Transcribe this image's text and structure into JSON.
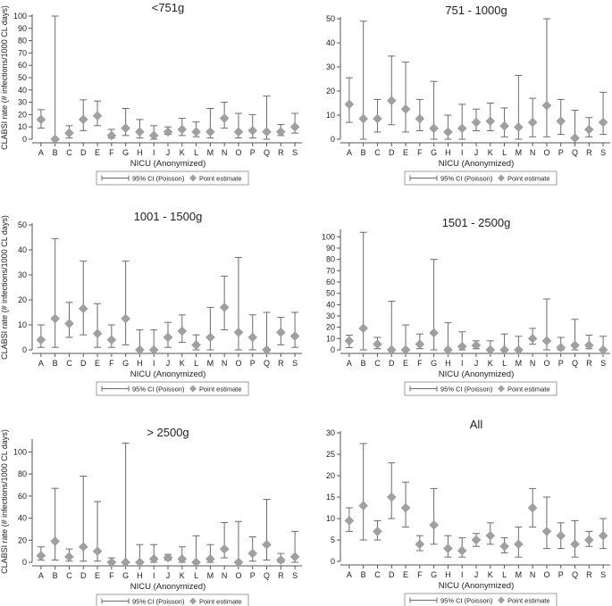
{
  "colors": {
    "axis": "#555555",
    "errorbar": "#6b6b6b",
    "marker": "#a0a0a0",
    "text": "#222222"
  },
  "chart_data": [
    {
      "type": "scatter",
      "title": "<751g",
      "xlabel": "NICU (Anonymized)",
      "ylabel": "CLABSI rate (# infections/1000 CL days)",
      "ylim": [
        0,
        100
      ],
      "yticks": [
        0,
        10,
        20,
        30,
        40,
        50,
        60,
        70,
        80,
        90,
        100
      ],
      "legend": {
        "errorbar": "95% CI (Poisson)",
        "point": "Point estimate",
        "placement": "bottom-center"
      },
      "categories": [
        "A",
        "B",
        "C",
        "D",
        "E",
        "F",
        "G",
        "H",
        "I",
        "J",
        "K",
        "L",
        "M",
        "N",
        "O",
        "P",
        "Q",
        "R",
        "S"
      ],
      "values": [
        16,
        0,
        5,
        16,
        19,
        3,
        9,
        6,
        3,
        6,
        8,
        6,
        6,
        17,
        6,
        7,
        6,
        6,
        10
      ],
      "ci_low": [
        9,
        0,
        1,
        7,
        11,
        1,
        3,
        1,
        0,
        4,
        3,
        2,
        1,
        9,
        1,
        1,
        0,
        3,
        5
      ],
      "ci_high": [
        24,
        100,
        11,
        32,
        31,
        8,
        25,
        16,
        11,
        10,
        17,
        14,
        25,
        30,
        21,
        20,
        35,
        12,
        21
      ]
    },
    {
      "type": "scatter",
      "title": "751 - 1000g",
      "xlabel": "NICU (Anonymized)",
      "ylabel": "",
      "ylim": [
        0,
        50
      ],
      "yticks": [
        0,
        10,
        20,
        30,
        40,
        50
      ],
      "legend": {
        "errorbar": "95% CI (Poisson)",
        "point": "Point estimate",
        "placement": "bottom-center"
      },
      "categories": [
        "A",
        "B",
        "C",
        "D",
        "E",
        "F",
        "G",
        "H",
        "I",
        "J",
        "K",
        "L",
        "M",
        "N",
        "O",
        "P",
        "Q",
        "R",
        "S"
      ],
      "values": [
        14.5,
        8.5,
        8.5,
        16,
        12.5,
        8.5,
        4.5,
        3,
        4.5,
        7,
        7.5,
        5.5,
        5,
        7,
        14,
        7.5,
        0.5,
        4,
        7
      ],
      "ci_low": [
        7,
        0,
        3,
        6,
        3,
        3.5,
        0,
        0,
        0,
        3.5,
        3.5,
        1,
        0,
        1,
        1,
        2,
        0,
        1,
        2
      ],
      "ci_high": [
        25.5,
        49,
        16.5,
        34.5,
        32,
        16.5,
        24,
        10,
        14.5,
        12.5,
        15,
        13,
        26.5,
        17,
        51.5,
        16.5,
        12,
        9,
        19.5
      ]
    },
    {
      "type": "scatter",
      "title": "1001 - 1500g",
      "xlabel": "NICU (Anonymized)",
      "ylabel": "CLABSI rate (# infections/1000 CL days)",
      "ylim": [
        0,
        50
      ],
      "yticks": [
        0,
        10,
        20,
        30,
        40,
        50
      ],
      "legend": {
        "errorbar": "95% CI (Poisson)",
        "point": "Point estimate",
        "placement": "bottom-center"
      },
      "categories": [
        "A",
        "B",
        "C",
        "D",
        "E",
        "F",
        "G",
        "H",
        "I",
        "J",
        "K",
        "L",
        "M",
        "N",
        "O",
        "P",
        "Q",
        "R",
        "S"
      ],
      "values": [
        4,
        12.5,
        10.5,
        16.5,
        6.5,
        4,
        12.5,
        0,
        0,
        5,
        7.5,
        2,
        5,
        17,
        7,
        5,
        0,
        7,
        5.5
      ],
      "ci_low": [
        1,
        1,
        5,
        6,
        1,
        1,
        2,
        0,
        0,
        1,
        3,
        0,
        0,
        8,
        0,
        0,
        0,
        2,
        1
      ],
      "ci_high": [
        10,
        44.5,
        19,
        35.5,
        18.5,
        10,
        35.5,
        8,
        8,
        11,
        14,
        6,
        17,
        29.5,
        37,
        14,
        15,
        13,
        15
      ]
    },
    {
      "type": "scatter",
      "title": "1501 - 2500g",
      "xlabel": "NICU (Anonymized)",
      "ylabel": "",
      "ylim": [
        0,
        105
      ],
      "yticks": [
        0,
        10,
        20,
        30,
        40,
        50,
        60,
        70,
        80,
        90,
        100
      ],
      "legend": {
        "errorbar": "95% CI (Poisson)",
        "point": "Point estimate",
        "placement": "bottom-center"
      },
      "categories": [
        "A",
        "B",
        "C",
        "D",
        "E",
        "F",
        "G",
        "H",
        "I",
        "J",
        "K",
        "L",
        "M",
        "N",
        "O",
        "P",
        "Q",
        "R",
        "S"
      ],
      "values": [
        8,
        19,
        5,
        0,
        0,
        5,
        15,
        0,
        3,
        4,
        0,
        0,
        0,
        10,
        8,
        2,
        4,
        4,
        0
      ],
      "ci_low": [
        2,
        0,
        1,
        0,
        0,
        1,
        0,
        0,
        0,
        1,
        0,
        0,
        0,
        5,
        0,
        0,
        0,
        1,
        0
      ],
      "ci_high": [
        13,
        104,
        11,
        43,
        22,
        14,
        80,
        24,
        16,
        8,
        8,
        14,
        12,
        19,
        45,
        11,
        27,
        13,
        12
      ]
    },
    {
      "type": "scatter",
      "title": "> 2500g",
      "xlabel": "NICU (Anonymized)",
      "ylabel": "CLABSI rate (# infections/1000 CL days)",
      "ylim": [
        0,
        110
      ],
      "yticks": [
        0,
        20,
        40,
        60,
        80,
        100
      ],
      "legend": {
        "errorbar": "95% CI (Poisson)",
        "point": "Point estimate",
        "placement": "bottom-center"
      },
      "categories": [
        "A",
        "B",
        "C",
        "D",
        "E",
        "F",
        "G",
        "H",
        "I",
        "J",
        "K",
        "L",
        "M",
        "N",
        "O",
        "P",
        "Q",
        "R",
        "S"
      ],
      "values": [
        6,
        19,
        5,
        14,
        10,
        0,
        0,
        0,
        3,
        4,
        3,
        0,
        3,
        12,
        0,
        8,
        16,
        2,
        5
      ],
      "ci_low": [
        2,
        2,
        1,
        1,
        1,
        0,
        0,
        0,
        0,
        2,
        0,
        0,
        0,
        4,
        0,
        1,
        2,
        0,
        0
      ],
      "ci_high": [
        14,
        67,
        12,
        78,
        55,
        4,
        108,
        16,
        16,
        7,
        14,
        24,
        16,
        36,
        37,
        23,
        57,
        8,
        28
      ]
    },
    {
      "type": "scatter",
      "title": "All",
      "xlabel": "NICU (Anonymized)",
      "ylabel": "",
      "ylim": [
        0,
        30
      ],
      "yticks": [
        0,
        5,
        10,
        15,
        20,
        25,
        30
      ],
      "legend": {
        "errorbar": "95% CI (Poisson)",
        "point": "Point estimate",
        "placement": "bottom-center"
      },
      "categories": [
        "A",
        "B",
        "C",
        "D",
        "E",
        "F",
        "G",
        "H",
        "I",
        "J",
        "K",
        "L",
        "M",
        "N",
        "O",
        "P",
        "Q",
        "R",
        "S"
      ],
      "values": [
        9.5,
        13,
        7,
        15,
        12.5,
        4,
        8.5,
        3,
        2.5,
        5,
        6,
        3.5,
        4,
        12.5,
        7,
        6,
        4,
        5,
        6
      ],
      "ci_low": [
        7,
        5,
        5,
        10,
        8,
        2.5,
        4,
        1,
        1,
        3.5,
        4,
        2,
        1,
        8,
        3,
        3,
        1,
        3.5,
        3
      ],
      "ci_high": [
        12.5,
        27.5,
        9.5,
        23,
        18.5,
        6,
        17,
        6,
        5.5,
        6.5,
        9,
        5.5,
        8,
        17,
        15,
        9,
        9.5,
        7,
        10
      ]
    }
  ]
}
